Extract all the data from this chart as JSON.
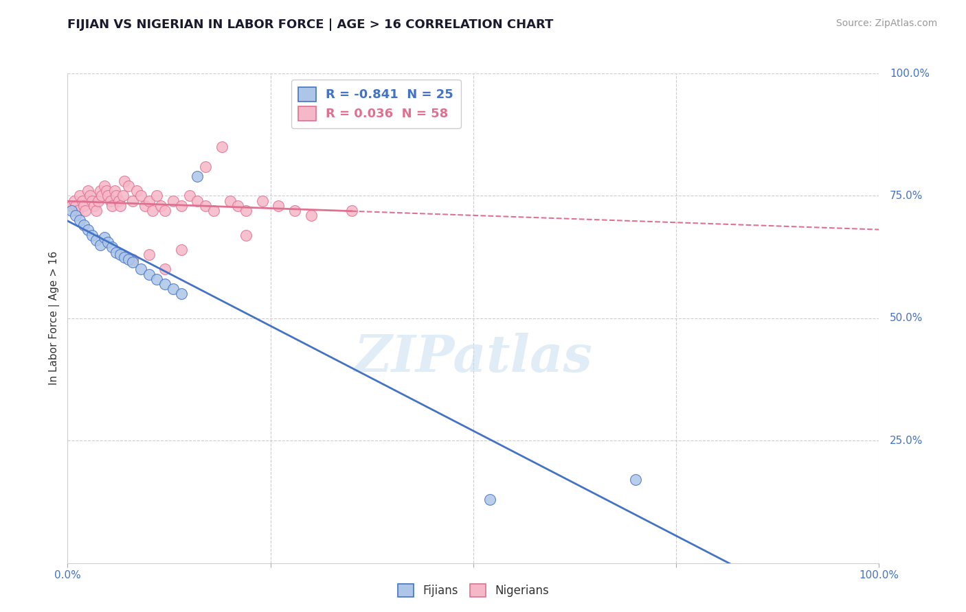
{
  "title": "FIJIAN VS NIGERIAN IN LABOR FORCE | AGE > 16 CORRELATION CHART",
  "source": "Source: ZipAtlas.com",
  "ylabel": "In Labor Force | Age > 16",
  "xlim": [
    0.0,
    1.0
  ],
  "ylim": [
    0.0,
    1.0
  ],
  "xticks": [
    0.0,
    0.25,
    0.5,
    0.75,
    1.0
  ],
  "xticklabels": [
    "0.0%",
    "",
    "",
    "",
    "100.0%"
  ],
  "yticks": [
    0.25,
    0.5,
    0.75,
    1.0
  ],
  "yticklabels": [
    "25.0%",
    "50.0%",
    "75.0%",
    "100.0%"
  ],
  "background_color": "#ffffff",
  "grid_color": "#cccccc",
  "fijian_fill": "#adc6e8",
  "nigerian_fill": "#f5b8c8",
  "fijian_edge": "#4472c4",
  "nigerian_edge": "#e07090",
  "fijian_line_color": "#4472c4",
  "nigerian_line_color": "#e07090",
  "watermark": "ZIPatlas",
  "legend_r_fijian": "-0.841",
  "legend_n_fijian": "25",
  "legend_r_nigerian": "0.036",
  "legend_n_nigerian": "58",
  "fijian_x": [
    0.005,
    0.01,
    0.015,
    0.02,
    0.025,
    0.03,
    0.035,
    0.04,
    0.045,
    0.05,
    0.055,
    0.06,
    0.065,
    0.07,
    0.075,
    0.08,
    0.09,
    0.1,
    0.11,
    0.12,
    0.13,
    0.14,
    0.16,
    0.52,
    0.7
  ],
  "fijian_y": [
    0.72,
    0.71,
    0.7,
    0.69,
    0.68,
    0.67,
    0.66,
    0.65,
    0.665,
    0.655,
    0.645,
    0.635,
    0.63,
    0.625,
    0.62,
    0.615,
    0.6,
    0.59,
    0.58,
    0.57,
    0.56,
    0.55,
    0.79,
    0.13,
    0.17
  ],
  "nigerian_x": [
    0.005,
    0.008,
    0.01,
    0.012,
    0.015,
    0.018,
    0.02,
    0.022,
    0.025,
    0.028,
    0.03,
    0.033,
    0.035,
    0.038,
    0.04,
    0.042,
    0.045,
    0.048,
    0.05,
    0.053,
    0.055,
    0.058,
    0.06,
    0.063,
    0.065,
    0.068,
    0.07,
    0.075,
    0.08,
    0.085,
    0.09,
    0.095,
    0.1,
    0.105,
    0.11,
    0.115,
    0.12,
    0.13,
    0.14,
    0.15,
    0.16,
    0.17,
    0.18,
    0.19,
    0.2,
    0.21,
    0.22,
    0.24,
    0.26,
    0.28,
    0.3,
    0.35,
    0.14,
    0.1,
    0.08,
    0.17,
    0.22,
    0.12
  ],
  "nigerian_y": [
    0.73,
    0.74,
    0.73,
    0.72,
    0.75,
    0.74,
    0.73,
    0.72,
    0.76,
    0.75,
    0.74,
    0.73,
    0.72,
    0.74,
    0.76,
    0.75,
    0.77,
    0.76,
    0.75,
    0.74,
    0.73,
    0.76,
    0.75,
    0.74,
    0.73,
    0.75,
    0.78,
    0.77,
    0.74,
    0.76,
    0.75,
    0.73,
    0.74,
    0.72,
    0.75,
    0.73,
    0.72,
    0.74,
    0.73,
    0.75,
    0.74,
    0.73,
    0.72,
    0.85,
    0.74,
    0.73,
    0.72,
    0.74,
    0.73,
    0.72,
    0.71,
    0.72,
    0.64,
    0.63,
    0.62,
    0.81,
    0.67,
    0.6
  ]
}
